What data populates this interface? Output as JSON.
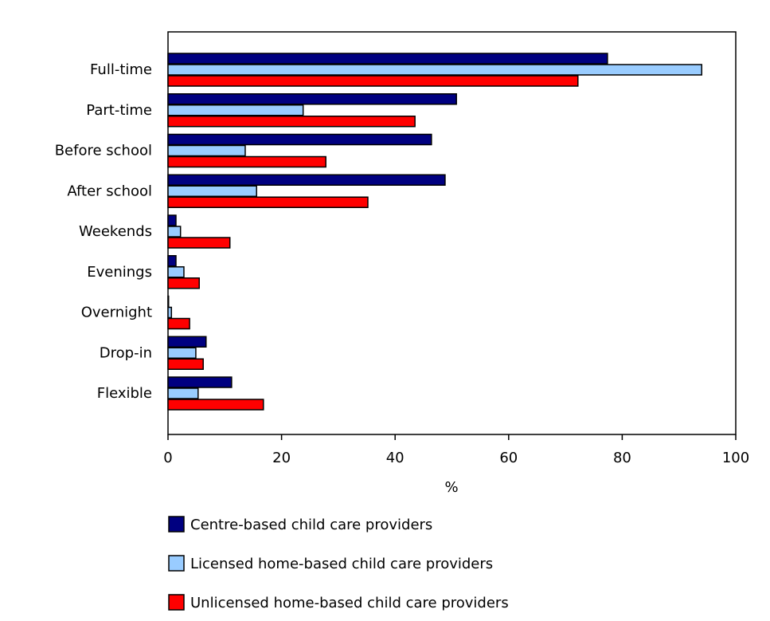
{
  "chart_data": {
    "type": "bar",
    "orientation": "horizontal",
    "categories": [
      "Full-time",
      "Part-time",
      "Before school",
      "After school",
      "Weekends",
      "Evenings",
      "Overnight",
      "Drop-in",
      "Flexible"
    ],
    "series": [
      {
        "name": "Centre-based child care providers",
        "color": "#000080",
        "values": [
          77.4,
          50.8,
          46.4,
          48.8,
          1.4,
          1.4,
          0.1,
          6.7,
          11.2
        ]
      },
      {
        "name": "Licensed home-based child care providers",
        "color": "#99CCFF",
        "values": [
          94.0,
          23.8,
          13.6,
          15.6,
          2.2,
          2.8,
          0.6,
          4.9,
          5.3
        ]
      },
      {
        "name": "Unlicensed home-based child care providers",
        "color": "#FF0000",
        "values": [
          72.2,
          43.5,
          27.8,
          35.2,
          10.9,
          5.5,
          3.8,
          6.2,
          16.8
        ]
      }
    ],
    "xlabel": "%",
    "xlim": [
      0,
      100
    ],
    "xticks": [
      "0",
      "20",
      "40",
      "60",
      "80",
      "100"
    ],
    "grid": false,
    "legend": "bottom"
  }
}
